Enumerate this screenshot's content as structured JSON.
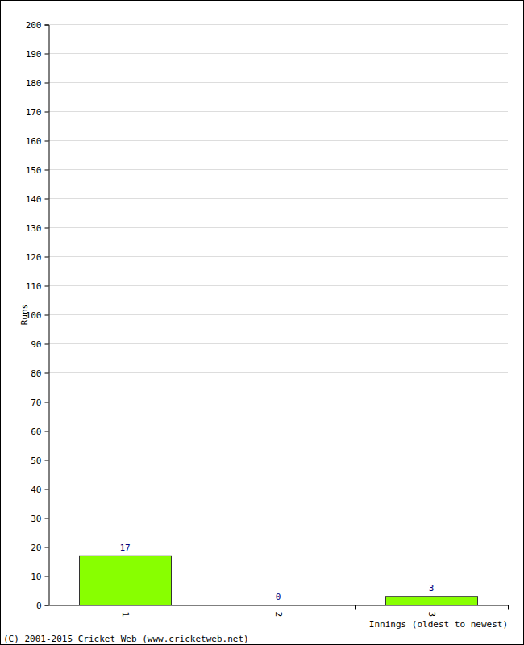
{
  "chart_data": {
    "type": "bar",
    "y_label": "Runs",
    "x_label": "Innings (oldest to newest)",
    "annotations": [
      "(C) 2001-2015 Cricket Web (www.cricketweb.net)"
    ],
    "categories": [
      "1",
      "2",
      "3"
    ],
    "values": [
      17,
      0,
      3
    ],
    "color": "#88ff00",
    "ylim": [
      0,
      200
    ],
    "yticks": [
      0,
      10,
      20,
      30,
      40,
      50,
      60,
      70,
      80,
      90,
      100,
      110,
      120,
      130,
      140,
      150,
      160,
      170,
      180,
      190,
      200
    ],
    "grid": true,
    "data_labels": true
  }
}
